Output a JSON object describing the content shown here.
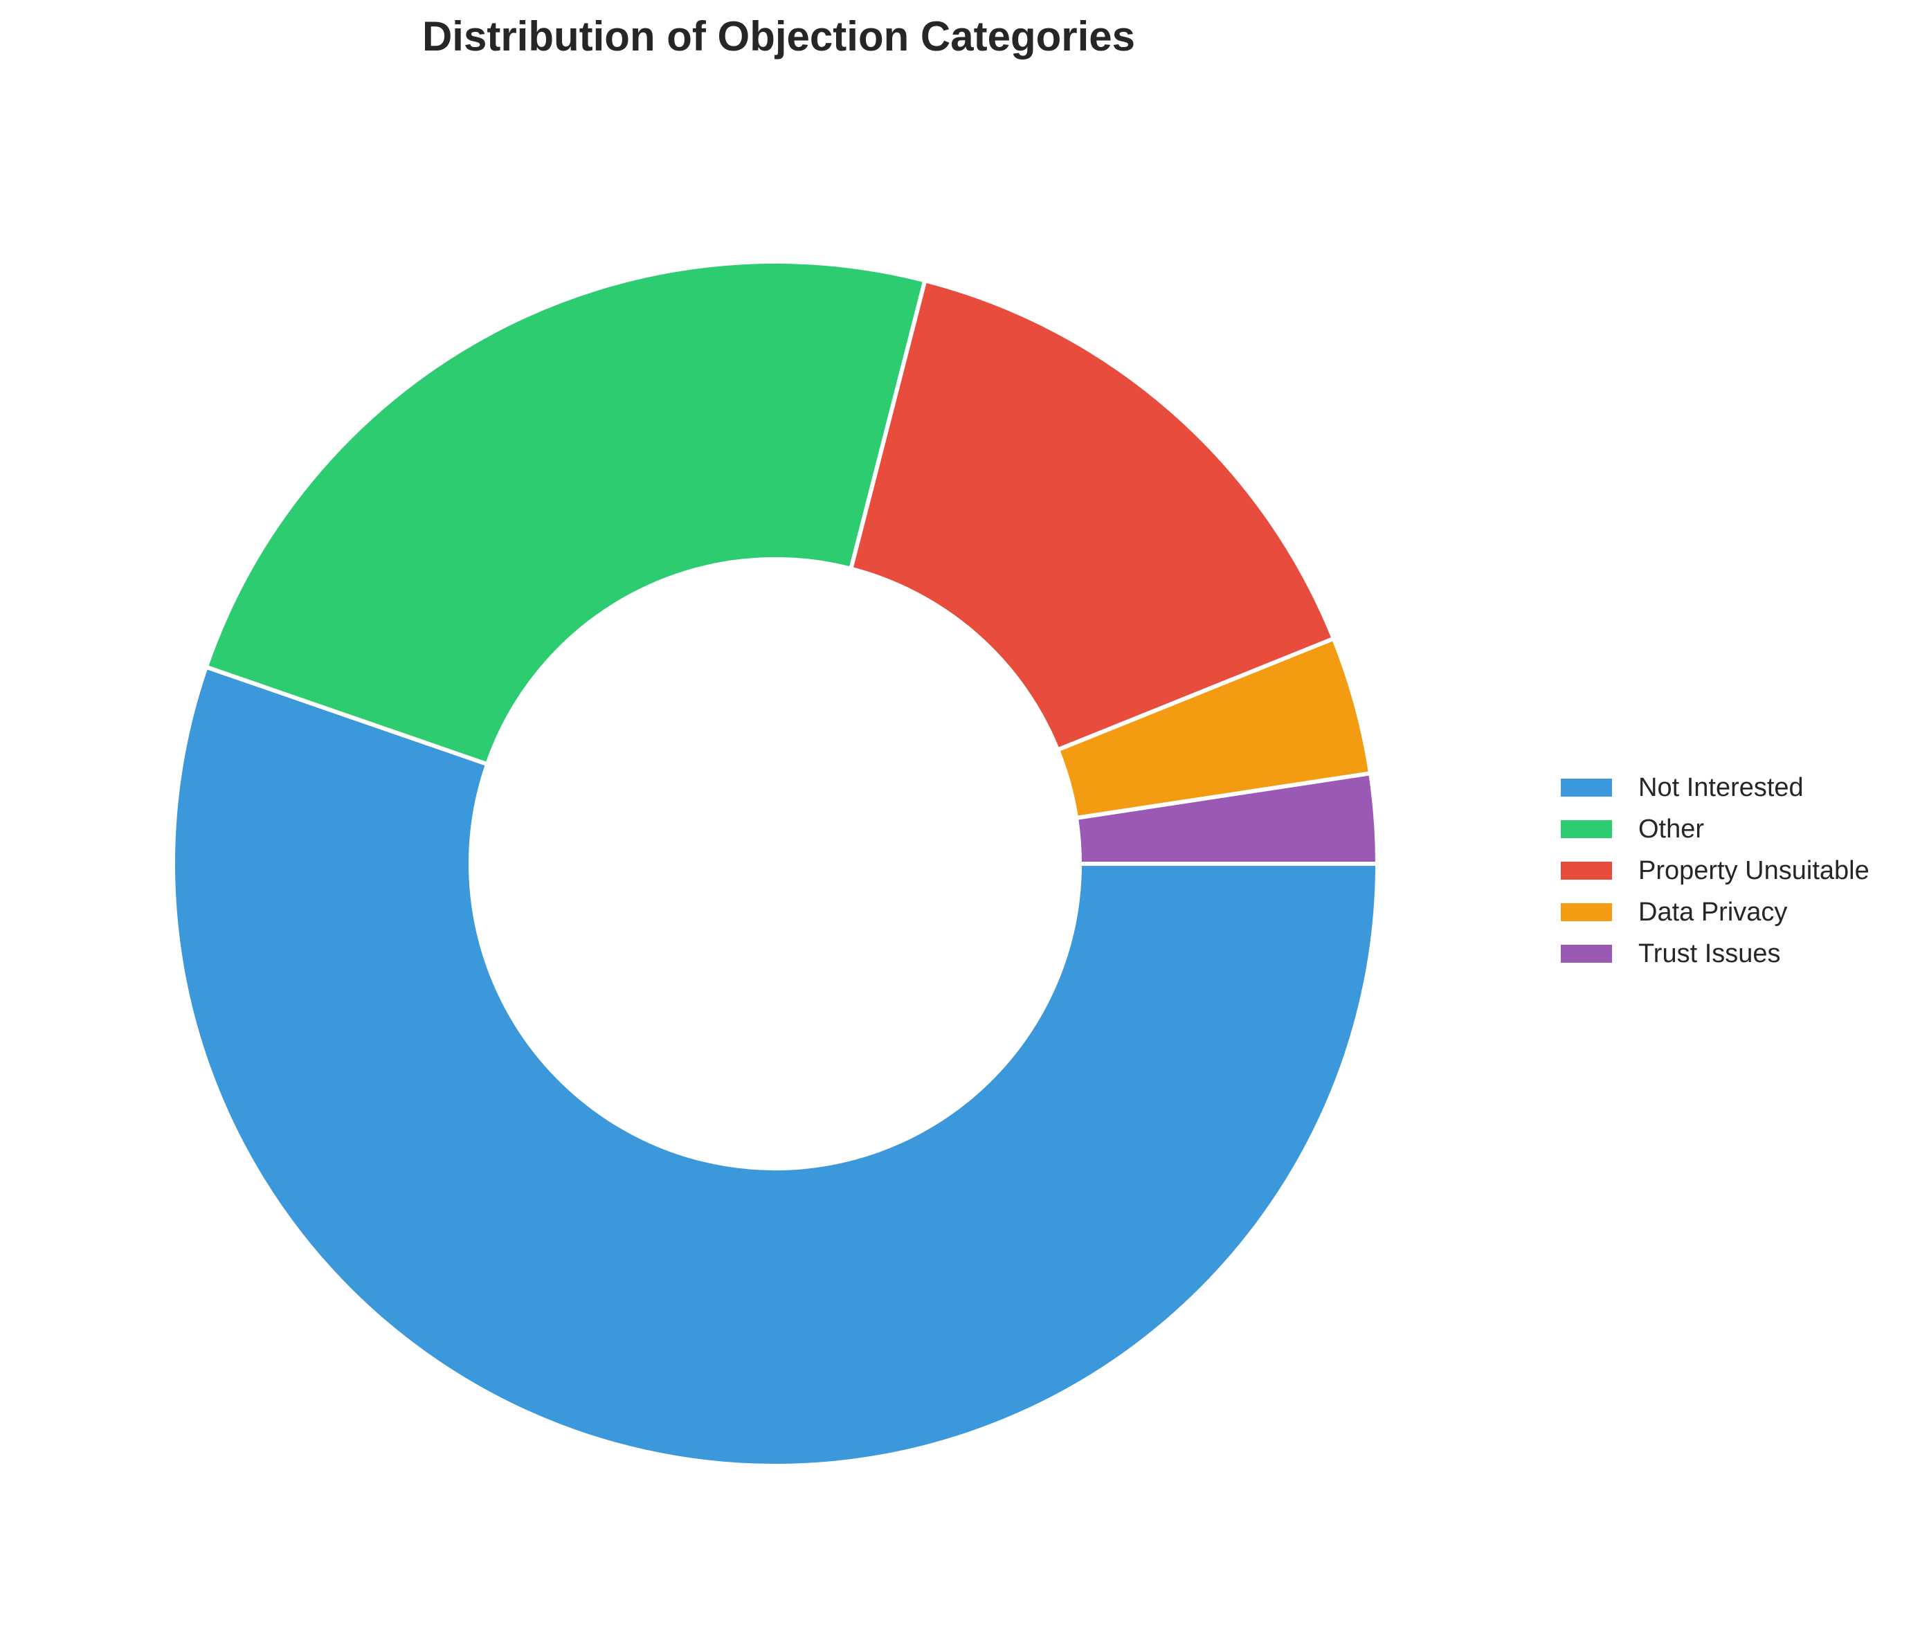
{
  "chart_data": {
    "type": "pie",
    "title": "Distribution of Objection Categories",
    "donut": true,
    "categories": [
      "Not Interested",
      "Other",
      "Property Unsuitable",
      "Data Privacy",
      "Trust Issues"
    ],
    "values": [
      55.3,
      23.7,
      14.9,
      3.7,
      2.4
    ],
    "colors": [
      "#3A98DB",
      "#2ECC71",
      "#E74C3C",
      "#F39C12",
      "#9B59B6"
    ],
    "legend": {
      "placement": "center-right",
      "items": [
        {
          "label": "Not Interested",
          "color": "#3A98DB"
        },
        {
          "label": "Other",
          "color": "#2ECC71"
        },
        {
          "label": "Property Unsuitable",
          "color": "#E74C3C"
        },
        {
          "label": "Data Privacy",
          "color": "#F39C12"
        },
        {
          "label": "Trust Issues",
          "color": "#9B59B6"
        }
      ]
    }
  }
}
